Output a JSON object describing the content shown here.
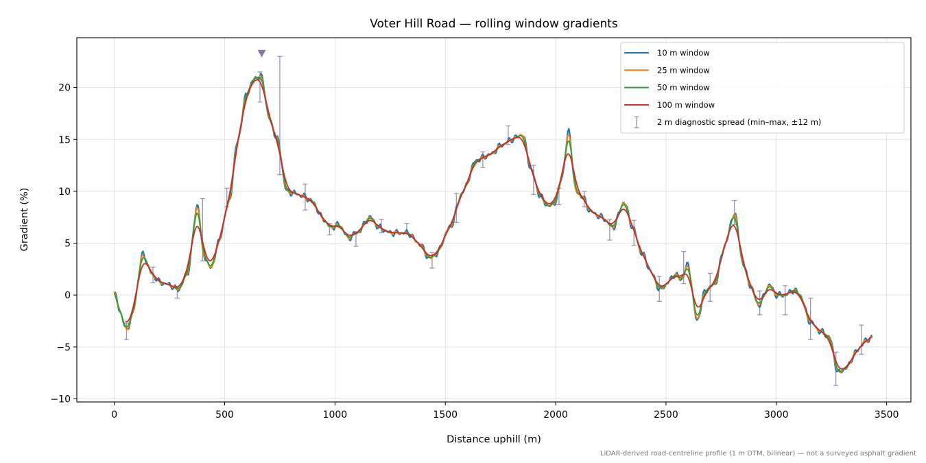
{
  "chart_data": {
    "type": "line",
    "title": "Voter Hill Road — rolling window gradients",
    "xlabel": "Distance uphill (m)",
    "ylabel": "Gradient (%)",
    "xlim": [
      -170,
      3610
    ],
    "ylim": [
      -10.3,
      24.8
    ],
    "xticks": [
      0,
      500,
      1000,
      1500,
      2000,
      2500,
      3000,
      3500
    ],
    "yticks": [
      -10,
      -5,
      0,
      5,
      10,
      15,
      20
    ],
    "grid": true,
    "legend_position": "top-right",
    "footnote": "LiDAR-derived road-centreline profile (1 m DTM, bilinear) — not a surveyed asphalt gradient",
    "base_profile": {
      "x": [
        0,
        25,
        55,
        80,
        130,
        170,
        210,
        250,
        290,
        330,
        380,
        400,
        440,
        470,
        520,
        560,
        600,
        640,
        670,
        700,
        740,
        780,
        820,
        860,
        900,
        940,
        980,
        1020,
        1060,
        1100,
        1160,
        1200,
        1250,
        1330,
        1380,
        1430,
        1460,
        1520,
        1580,
        1640,
        1700,
        1760,
        1800,
        1850,
        1890,
        1930,
        1970,
        2000,
        2030,
        2060,
        2090,
        2120,
        2160,
        2210,
        2260,
        2310,
        2350,
        2390,
        2440,
        2470,
        2500,
        2540,
        2570,
        2600,
        2640,
        2680,
        2720,
        2770,
        2810,
        2850,
        2880,
        2920,
        2970,
        3000,
        3040,
        3080,
        3110,
        3150,
        3200,
        3240,
        3280,
        3320,
        3360,
        3400,
        3435
      ],
      "y": [
        0.2,
        -1.5,
        -3.5,
        -2,
        4,
        2,
        1.2,
        1,
        0.5,
        2,
        9,
        4,
        2.5,
        5,
        9,
        15,
        19.5,
        21,
        21,
        17,
        15,
        10,
        9.8,
        9.5,
        9,
        7.5,
        6.5,
        6.8,
        5.5,
        6,
        7.5,
        6.5,
        6,
        6,
        5,
        3.5,
        4,
        6.5,
        10,
        13,
        13.5,
        14.5,
        15,
        15.5,
        12,
        9.5,
        8.5,
        9,
        11.5,
        16,
        10,
        9.5,
        8,
        7.5,
        6.5,
        9,
        6.5,
        4,
        2,
        0.5,
        1,
        2,
        1.5,
        3,
        -2.5,
        0.5,
        1,
        5,
        8,
        3,
        1,
        -1,
        1,
        0,
        0,
        0.5,
        0,
        -2.5,
        -3.5,
        -4,
        -7.5,
        -7,
        -5.5,
        -4.5,
        -4
      ]
    },
    "series": [
      {
        "name": "10 m window",
        "color": "#1f77b4",
        "smoothing_passes": 1,
        "noise": 0.35
      },
      {
        "name": "25 m window",
        "color": "#ff7f0e",
        "smoothing_passes": 3,
        "noise": 0.15
      },
      {
        "name": "50 m window",
        "color": "#2ca02c",
        "smoothing_passes": 8,
        "noise": 0
      },
      {
        "name": "100 m window",
        "color": "#d62728",
        "smoothing_passes": 28,
        "noise": 0,
        "x_range": [
          50,
          3435
        ]
      }
    ],
    "diagnostic_spread": {
      "name": "2 m diagnostic spread (min–max, ±12 m)",
      "color": "#9d8fb8",
      "points": [
        {
          "x": 55,
          "min": -4.3,
          "max": -2.7
        },
        {
          "x": 175,
          "min": 1.2,
          "max": 2.7
        },
        {
          "x": 285,
          "min": -0.3,
          "max": 0.7
        },
        {
          "x": 400,
          "min": 3.3,
          "max": 9.3
        },
        {
          "x": 510,
          "min": 8.5,
          "max": 10.3
        },
        {
          "x": 660,
          "min": 18.6,
          "max": 21.5
        },
        {
          "x": 750,
          "min": 11.6,
          "max": 23.0
        },
        {
          "x": 865,
          "min": 8.2,
          "max": 10.7
        },
        {
          "x": 975,
          "min": 5.8,
          "max": 6.9
        },
        {
          "x": 1095,
          "min": 4.7,
          "max": 6.1
        },
        {
          "x": 1210,
          "min": 6.0,
          "max": 7.3
        },
        {
          "x": 1325,
          "min": 6.0,
          "max": 6.9
        },
        {
          "x": 1440,
          "min": 2.6,
          "max": 4.1
        },
        {
          "x": 1550,
          "min": 7.0,
          "max": 9.8
        },
        {
          "x": 1670,
          "min": 12.3,
          "max": 13.8
        },
        {
          "x": 1785,
          "min": 14.5,
          "max": 16.3
        },
        {
          "x": 1900,
          "min": 9.7,
          "max": 12.5
        },
        {
          "x": 2015,
          "min": 8.7,
          "max": 10.3
        },
        {
          "x": 2130,
          "min": 8.5,
          "max": 10.0
        },
        {
          "x": 2245,
          "min": 5.3,
          "max": 7.3
        },
        {
          "x": 2355,
          "min": 4.8,
          "max": 7.2
        },
        {
          "x": 2470,
          "min": -0.6,
          "max": 1.8
        },
        {
          "x": 2580,
          "min": 1.1,
          "max": 4.2
        },
        {
          "x": 2700,
          "min": -0.6,
          "max": 2.1
        },
        {
          "x": 2810,
          "min": 6.8,
          "max": 9.1
        },
        {
          "x": 2925,
          "min": -1.9,
          "max": 0.4
        },
        {
          "x": 3040,
          "min": -1.9,
          "max": 0.9
        },
        {
          "x": 3155,
          "min": -4.3,
          "max": -0.3
        },
        {
          "x": 3270,
          "min": -8.7,
          "max": -5.5
        },
        {
          "x": 3385,
          "min": -5.7,
          "max": -2.9
        }
      ]
    },
    "peak_marker": {
      "x": 668,
      "y": 23.3,
      "color": "#8a78aa"
    }
  }
}
